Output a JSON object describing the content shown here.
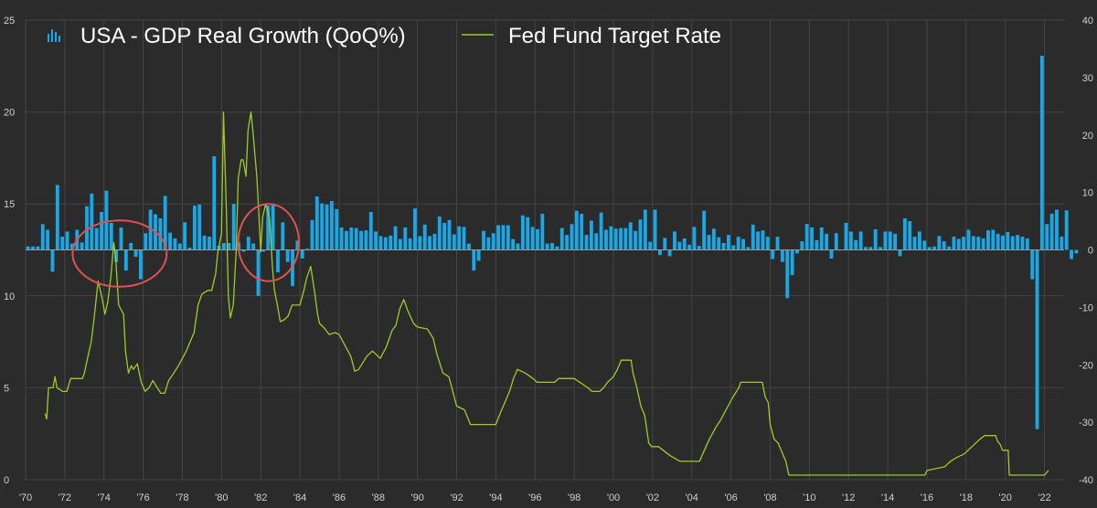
{
  "chart_data": {
    "type": "bar+line",
    "legend": {
      "placement": "top-left",
      "entries": [
        {
          "label": "USA - GDP Real Growth (QoQ%)",
          "kind": "bar",
          "color": "#1aa7e6"
        },
        {
          "label": "Fed Fund Target Rate",
          "kind": "line",
          "color": "#9ccc28"
        }
      ]
    },
    "x_axis": {
      "range": [
        1970,
        2023
      ],
      "ticks": [
        {
          "value": 1970,
          "label": "'70"
        },
        {
          "value": 1972,
          "label": "'72"
        },
        {
          "value": 1974,
          "label": "'74"
        },
        {
          "value": 1976,
          "label": "'76"
        },
        {
          "value": 1978,
          "label": "'78"
        },
        {
          "value": 1980,
          "label": "'80"
        },
        {
          "value": 1982,
          "label": "'82"
        },
        {
          "value": 1984,
          "label": "'84"
        },
        {
          "value": 1986,
          "label": "'86"
        },
        {
          "value": 1988,
          "label": "'88"
        },
        {
          "value": 1990,
          "label": "'90"
        },
        {
          "value": 1992,
          "label": "'92"
        },
        {
          "value": 1994,
          "label": "'94"
        },
        {
          "value": 1996,
          "label": "'96"
        },
        {
          "value": 1998,
          "label": "'98"
        },
        {
          "value": 2000,
          "label": "'00"
        },
        {
          "value": 2002,
          "label": "'02"
        },
        {
          "value": 2004,
          "label": "'04"
        },
        {
          "value": 2006,
          "label": "'06"
        },
        {
          "value": 2008,
          "label": "'08"
        },
        {
          "value": 2010,
          "label": "'10"
        },
        {
          "value": 2012,
          "label": "'12"
        },
        {
          "value": 2014,
          "label": "'14"
        },
        {
          "value": 2016,
          "label": "'16"
        },
        {
          "value": 2018,
          "label": "'18"
        },
        {
          "value": 2020,
          "label": "'20"
        },
        {
          "value": 2022,
          "label": "'22"
        }
      ]
    },
    "y_left": {
      "range": [
        0,
        25
      ],
      "series": "Fed Fund Target Rate",
      "ticks": [
        {
          "value": 0,
          "label": "0"
        },
        {
          "value": 5,
          "label": "5"
        },
        {
          "value": 10,
          "label": "10"
        },
        {
          "value": 15,
          "label": "15"
        },
        {
          "value": 20,
          "label": "20"
        },
        {
          "value": 25,
          "label": "25"
        }
      ]
    },
    "y_right": {
      "range": [
        -40,
        40
      ],
      "series": "USA - GDP Real Growth (QoQ%)",
      "ticks": [
        {
          "value": -40,
          "label": "-40"
        },
        {
          "value": -30,
          "label": "-30"
        },
        {
          "value": -20,
          "label": "-20"
        },
        {
          "value": -10,
          "label": "-10"
        },
        {
          "value": 0,
          "label": "0"
        },
        {
          "value": 10,
          "label": "10"
        },
        {
          "value": 20,
          "label": "20"
        },
        {
          "value": 30,
          "label": "30"
        },
        {
          "value": 40,
          "label": "40"
        }
      ]
    },
    "grid": true,
    "annotations": [
      {
        "type": "circle",
        "center_x": 1974.8,
        "center_y_rate": 12.3,
        "rx_years": 2.4,
        "ry_rate": 1.8,
        "color": "#e05252"
      },
      {
        "type": "circle",
        "center_x": 1982.4,
        "center_y_rate": 12.9,
        "rx_years": 1.55,
        "ry_rate": 2.1,
        "color": "#e05252"
      }
    ],
    "gdp": {
      "start": 1970,
      "step": 0.25,
      "values": [
        0.6,
        0.6,
        0.6,
        4.5,
        3.5,
        -3.8,
        11.3,
        2.3,
        3.2,
        1.1,
        3.5,
        1.3,
        7.6,
        9.8,
        3.8,
        6.6,
        10.3,
        4.7,
        -2.1,
        3.9,
        -3.6,
        1.2,
        -1.2,
        -5.1,
        2.9,
        7.0,
        6.2,
        5.5,
        9.4,
        3.0,
        2.0,
        1.1,
        4.8,
        0.4,
        7.7,
        7.9,
        2.5,
        2.3,
        16.3,
        0.7,
        1.2,
        1.2,
        8.0,
        1.3,
        -0.3,
        2.3,
        1.1,
        -8.0,
        -0.3,
        7.7,
        8.1,
        -3.9,
        4.8,
        -2.1,
        -6.3,
        1.6,
        -1.5,
        0.2,
        5.2,
        9.3,
        8.1,
        7.9,
        8.5,
        7.1,
        3.9,
        3.3,
        3.9,
        3.8,
        3.3,
        3.4,
        6.6,
        3.2,
        2.4,
        2.2,
        2.5,
        4.1,
        1.9,
        3.9,
        2.0,
        7.2,
        2.4,
        4.4,
        2.4,
        2.8,
        5.8,
        4.7,
        5.2,
        2.7,
        4.1,
        4.0,
        1.1,
        -3.6,
        -1.9,
        3.3,
        2.2,
        2.9,
        4.3,
        4.3,
        4.3,
        1.9,
        1.1,
        6.0,
        5.7,
        4.0,
        3.6,
        6.3,
        1.1,
        1.2,
        0.6,
        3.8,
        2.6,
        4.5,
        6.8,
        6.3,
        2.6,
        5.1,
        2.9,
        6.5,
        3.5,
        4.1,
        3.7,
        3.8,
        3.8,
        4.8,
        3.3,
        5.3,
        7.0,
        1.4,
        7.0,
        -0.9,
        2.1,
        -1.1,
        3.2,
        1.4,
        2.0,
        0.9,
        4.0,
        0.7,
        6.8,
        2.6,
        3.7,
        2.2,
        1.2,
        2.6,
        0.8,
        2.3,
        1.9,
        0.5,
        4.4,
        3.2,
        3.4,
        2.3,
        -1.6,
        2.3,
        -2.1,
        -8.4,
        -4.4,
        -0.6,
        1.5,
        4.5,
        3.9,
        1.7,
        3.9,
        2.8,
        -1.5,
        2.9,
        -0.1,
        4.7,
        3.2,
        1.7,
        3.2,
        0.5,
        0.5,
        3.6,
        0.5,
        3.2,
        3.2,
        2.8,
        -1.1,
        5.5,
        5.0,
        2.3,
        3.2,
        1.6,
        0.5,
        0.6,
        2.4,
        1.5,
        0.6,
        2.3,
        1.9,
        2.3,
        3.5,
        2.4,
        2.3,
        2.0,
        3.4,
        3.5,
        2.8,
        2.5,
        3.1,
        2.4,
        2.6,
        2.3,
        2.0,
        -5.1,
        -31.2,
        33.8,
        4.5,
        6.3,
        7.0,
        2.3,
        6.9,
        -1.6,
        -0.6
      ]
    },
    "fed_rate": [
      [
        1971.0,
        3.6
      ],
      [
        1971.08,
        3.3
      ],
      [
        1971.17,
        5.0
      ],
      [
        1971.4,
        5.0
      ],
      [
        1971.5,
        5.6
      ],
      [
        1971.6,
        5.0
      ],
      [
        1971.9,
        4.8
      ],
      [
        1972.1,
        4.8
      ],
      [
        1972.3,
        5.5
      ],
      [
        1972.6,
        5.5
      ],
      [
        1972.9,
        5.5
      ],
      [
        1973.0,
        5.8
      ],
      [
        1973.2,
        6.8
      ],
      [
        1973.35,
        7.5
      ],
      [
        1973.5,
        8.8
      ],
      [
        1973.7,
        10.8
      ],
      [
        1973.9,
        9.9
      ],
      [
        1974.05,
        9.0
      ],
      [
        1974.2,
        9.7
      ],
      [
        1974.35,
        11.0
      ],
      [
        1974.5,
        12.9
      ],
      [
        1974.6,
        12.0
      ],
      [
        1974.75,
        9.5
      ],
      [
        1975.0,
        9.0
      ],
      [
        1975.1,
        7.0
      ],
      [
        1975.25,
        5.8
      ],
      [
        1975.4,
        6.2
      ],
      [
        1975.5,
        6.0
      ],
      [
        1975.7,
        6.3
      ],
      [
        1975.8,
        5.8
      ],
      [
        1975.9,
        5.3
      ],
      [
        1976.1,
        4.8
      ],
      [
        1976.3,
        5.0
      ],
      [
        1976.5,
        5.4
      ],
      [
        1976.6,
        5.2
      ],
      [
        1976.9,
        4.7
      ],
      [
        1977.1,
        4.7
      ],
      [
        1977.3,
        5.4
      ],
      [
        1977.5,
        5.7
      ],
      [
        1977.8,
        6.2
      ],
      [
        1978.0,
        6.6
      ],
      [
        1978.2,
        7.0
      ],
      [
        1978.4,
        7.5
      ],
      [
        1978.6,
        8.0
      ],
      [
        1978.8,
        9.5
      ],
      [
        1979.0,
        10.1
      ],
      [
        1979.3,
        10.3
      ],
      [
        1979.5,
        10.3
      ],
      [
        1979.7,
        11.2
      ],
      [
        1979.8,
        12.3
      ],
      [
        1980.0,
        13.4
      ],
      [
        1980.1,
        20.0
      ],
      [
        1980.25,
        14.5
      ],
      [
        1980.35,
        10.0
      ],
      [
        1980.45,
        8.8
      ],
      [
        1980.6,
        9.5
      ],
      [
        1980.75,
        12.5
      ],
      [
        1980.85,
        16.4
      ],
      [
        1981.0,
        17.4
      ],
      [
        1981.1,
        17.4
      ],
      [
        1981.25,
        16.5
      ],
      [
        1981.35,
        19.0
      ],
      [
        1981.5,
        20.0
      ],
      [
        1981.6,
        19.0
      ],
      [
        1981.8,
        16.5
      ],
      [
        1981.9,
        14.5
      ],
      [
        1982.0,
        12.4
      ],
      [
        1982.1,
        14.3
      ],
      [
        1982.25,
        15.0
      ],
      [
        1982.45,
        14.2
      ],
      [
        1982.6,
        11.5
      ],
      [
        1982.7,
        10.3
      ],
      [
        1982.85,
        9.5
      ],
      [
        1983.0,
        8.6
      ],
      [
        1983.2,
        8.7
      ],
      [
        1983.4,
        8.9
      ],
      [
        1983.6,
        9.5
      ],
      [
        1983.8,
        9.5
      ],
      [
        1984.0,
        9.5
      ],
      [
        1984.2,
        10.3
      ],
      [
        1984.35,
        11.0
      ],
      [
        1984.55,
        11.6
      ],
      [
        1984.75,
        10.2
      ],
      [
        1984.9,
        9.0
      ],
      [
        1985.0,
        8.5
      ],
      [
        1985.2,
        8.3
      ],
      [
        1985.5,
        7.9
      ],
      [
        1985.8,
        8.0
      ],
      [
        1986.0,
        7.9
      ],
      [
        1986.3,
        7.3
      ],
      [
        1986.6,
        6.7
      ],
      [
        1986.8,
        5.9
      ],
      [
        1987.0,
        6.0
      ],
      [
        1987.4,
        6.7
      ],
      [
        1987.7,
        7.0
      ],
      [
        1987.9,
        6.8
      ],
      [
        1988.1,
        6.6
      ],
      [
        1988.4,
        7.2
      ],
      [
        1988.7,
        8.1
      ],
      [
        1988.9,
        8.4
      ],
      [
        1989.1,
        9.3
      ],
      [
        1989.3,
        9.8
      ],
      [
        1989.5,
        9.2
      ],
      [
        1989.8,
        8.5
      ],
      [
        1990.0,
        8.3
      ],
      [
        1990.5,
        8.2
      ],
      [
        1990.8,
        7.7
      ],
      [
        1991.0,
        6.8
      ],
      [
        1991.3,
        5.8
      ],
      [
        1991.6,
        5.6
      ],
      [
        1991.8,
        4.8
      ],
      [
        1992.0,
        4.0
      ],
      [
        1992.4,
        3.8
      ],
      [
        1992.7,
        3.0
      ],
      [
        1993.0,
        3.0
      ],
      [
        1993.5,
        3.0
      ],
      [
        1994.0,
        3.0
      ],
      [
        1994.1,
        3.3
      ],
      [
        1994.3,
        3.8
      ],
      [
        1994.5,
        4.3
      ],
      [
        1994.7,
        4.8
      ],
      [
        1994.9,
        5.5
      ],
      [
        1995.1,
        6.0
      ],
      [
        1995.5,
        5.8
      ],
      [
        1995.9,
        5.5
      ],
      [
        1996.1,
        5.3
      ],
      [
        1996.5,
        5.3
      ],
      [
        1997.0,
        5.3
      ],
      [
        1997.2,
        5.5
      ],
      [
        1997.6,
        5.5
      ],
      [
        1998.0,
        5.5
      ],
      [
        1998.7,
        5.0
      ],
      [
        1998.9,
        4.8
      ],
      [
        1999.3,
        4.8
      ],
      [
        1999.5,
        5.0
      ],
      [
        1999.7,
        5.3
      ],
      [
        2000.0,
        5.6
      ],
      [
        2000.2,
        6.0
      ],
      [
        2000.4,
        6.5
      ],
      [
        2000.9,
        6.5
      ],
      [
        2001.0,
        5.8
      ],
      [
        2001.2,
        5.0
      ],
      [
        2001.4,
        4.0
      ],
      [
        2001.6,
        3.5
      ],
      [
        2001.8,
        2.0
      ],
      [
        2001.95,
        1.8
      ],
      [
        2002.3,
        1.8
      ],
      [
        2002.9,
        1.3
      ],
      [
        2003.4,
        1.0
      ],
      [
        2004.4,
        1.0
      ],
      [
        2004.6,
        1.5
      ],
      [
        2004.9,
        2.2
      ],
      [
        2005.2,
        2.8
      ],
      [
        2005.5,
        3.3
      ],
      [
        2005.8,
        3.9
      ],
      [
        2006.1,
        4.5
      ],
      [
        2006.4,
        5.0
      ],
      [
        2006.5,
        5.3
      ],
      [
        2007.6,
        5.3
      ],
      [
        2007.75,
        4.5
      ],
      [
        2007.9,
        4.2
      ],
      [
        2008.0,
        3.0
      ],
      [
        2008.2,
        2.2
      ],
      [
        2008.4,
        2.0
      ],
      [
        2008.8,
        1.0
      ],
      [
        2008.95,
        0.25
      ],
      [
        2015.9,
        0.25
      ],
      [
        2016.0,
        0.5
      ],
      [
        2016.9,
        0.7
      ],
      [
        2017.2,
        1.0
      ],
      [
        2017.5,
        1.2
      ],
      [
        2017.9,
        1.4
      ],
      [
        2018.2,
        1.7
      ],
      [
        2018.5,
        2.0
      ],
      [
        2018.7,
        2.2
      ],
      [
        2018.95,
        2.4
      ],
      [
        2019.5,
        2.4
      ],
      [
        2019.6,
        2.1
      ],
      [
        2019.75,
        1.9
      ],
      [
        2019.85,
        1.6
      ],
      [
        2020.15,
        1.6
      ],
      [
        2020.2,
        0.25
      ],
      [
        2022.0,
        0.25
      ],
      [
        2022.2,
        0.5
      ]
    ]
  }
}
